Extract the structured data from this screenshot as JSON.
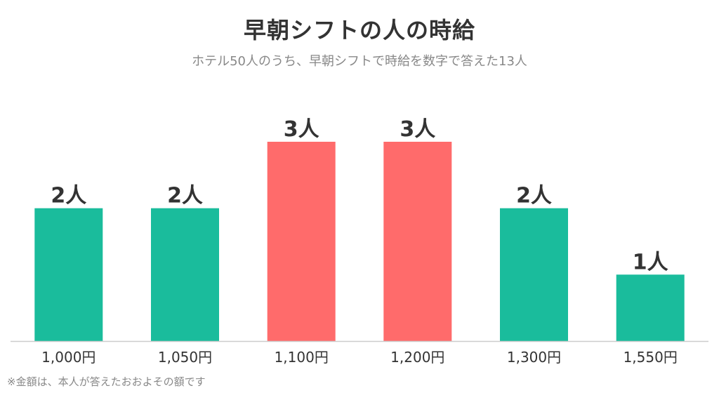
{
  "title": "早朝シフトの人の時給",
  "subtitle": "ホテル50人のうち、早朝シフトで時給を数字で答えた13人",
  "footnote": "※金額は、本人が答えたおおよその額です",
  "colors": {
    "normal": "#1ABC9C",
    "highlight": "#FF6B6B",
    "baseline": "#CCCCCC",
    "label": "#333333"
  },
  "chart_data": {
    "type": "bar",
    "categories": [
      "1,000円",
      "1,050円",
      "1,100円",
      "1,200円",
      "1,300円",
      "1,550円"
    ],
    "values": [
      2,
      2,
      3,
      3,
      2,
      1
    ],
    "value_labels": [
      "2人",
      "2人",
      "3人",
      "3人",
      "2人",
      "1人"
    ],
    "highlight": [
      false,
      false,
      true,
      true,
      false,
      false
    ],
    "ylim": [
      0,
      3
    ],
    "grid": false
  }
}
